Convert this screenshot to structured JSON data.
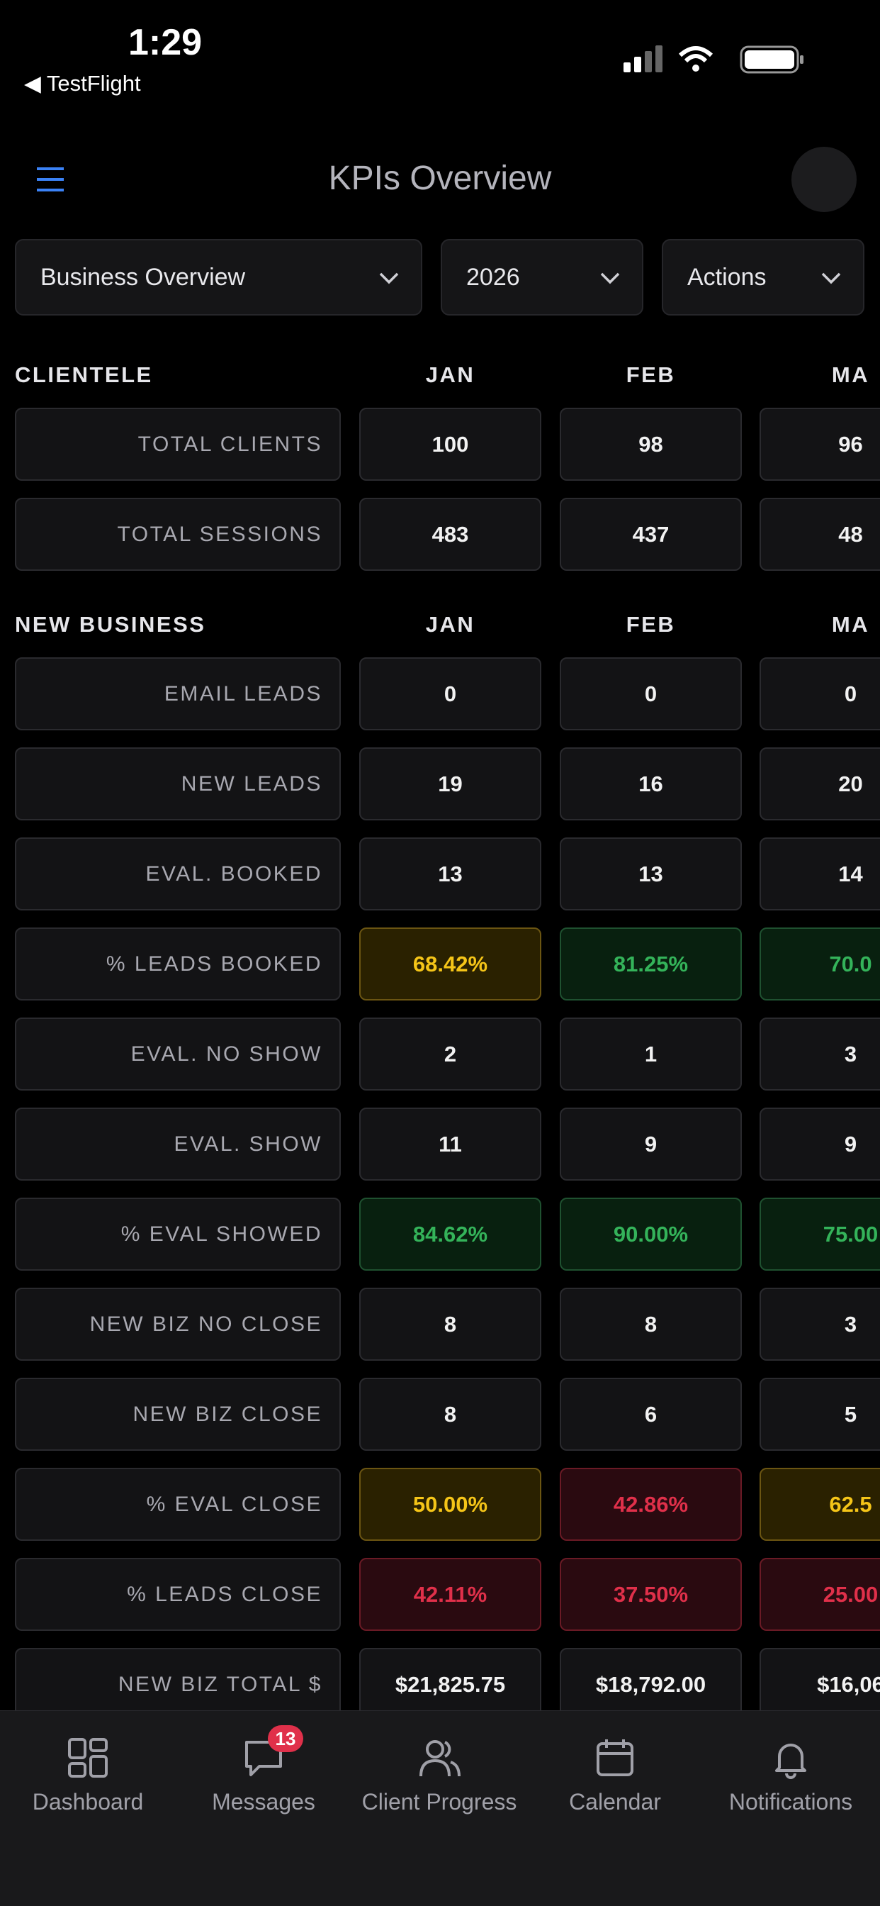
{
  "status_bar": {
    "time": "1:29",
    "back": "◀ TestFlight"
  },
  "header": {
    "title": "KPIs Overview"
  },
  "filters": [
    "Business Overview",
    "2026",
    "Actions"
  ],
  "sections": [
    {
      "title": "CLIENTELE",
      "months": [
        "JAN",
        "FEB",
        "MA"
      ],
      "rows": [
        {
          "label": "TOTAL CLIENTS",
          "cells": [
            {
              "text": "100"
            },
            {
              "text": "98"
            },
            {
              "text": "96"
            }
          ]
        },
        {
          "label": "TOTAL SESSIONS",
          "cells": [
            {
              "text": "483"
            },
            {
              "text": "437"
            },
            {
              "text": "48"
            }
          ]
        }
      ]
    },
    {
      "title": "NEW BUSINESS",
      "months": [
        "JAN",
        "FEB",
        "MA"
      ],
      "rows": [
        {
          "label": "EMAIL LEADS",
          "cells": [
            {
              "text": "0"
            },
            {
              "text": "0"
            },
            {
              "text": "0"
            }
          ]
        },
        {
          "label": "NEW LEADS",
          "cells": [
            {
              "text": "19"
            },
            {
              "text": "16"
            },
            {
              "text": "20"
            }
          ]
        },
        {
          "label": "EVAL. BOOKED",
          "cells": [
            {
              "text": "13"
            },
            {
              "text": "13"
            },
            {
              "text": "14"
            }
          ]
        },
        {
          "label": "% LEADS BOOKED",
          "cells": [
            {
              "text": "68.42%",
              "tone": "warning"
            },
            {
              "text": "81.25%",
              "tone": "good"
            },
            {
              "text": "70.0",
              "tone": "good"
            }
          ]
        },
        {
          "label": "EVAL. NO SHOW",
          "cells": [
            {
              "text": "2"
            },
            {
              "text": "1"
            },
            {
              "text": "3"
            }
          ]
        },
        {
          "label": "EVAL. SHOW",
          "cells": [
            {
              "text": "11"
            },
            {
              "text": "9"
            },
            {
              "text": "9"
            }
          ]
        },
        {
          "label": "% EVAL SHOWED",
          "cells": [
            {
              "text": "84.62%",
              "tone": "good"
            },
            {
              "text": "90.00%",
              "tone": "good"
            },
            {
              "text": "75.00",
              "tone": "good"
            }
          ]
        },
        {
          "label": "NEW BIZ NO CLOSE",
          "cells": [
            {
              "text": "8"
            },
            {
              "text": "8"
            },
            {
              "text": "3"
            }
          ]
        },
        {
          "label": "NEW BIZ CLOSE",
          "cells": [
            {
              "text": "8"
            },
            {
              "text": "6"
            },
            {
              "text": "5"
            }
          ]
        },
        {
          "label": "% EVAL CLOSE",
          "cells": [
            {
              "text": "50.00%",
              "tone": "warning"
            },
            {
              "text": "42.86%",
              "tone": "bad"
            },
            {
              "text": "62.5",
              "tone": "warning"
            }
          ]
        },
        {
          "label": "% LEADS CLOSE",
          "cells": [
            {
              "text": "42.11%",
              "tone": "bad"
            },
            {
              "text": "37.50%",
              "tone": "bad"
            },
            {
              "text": "25.00",
              "tone": "bad"
            }
          ]
        },
        {
          "label": "NEW BIZ TOTAL $",
          "cells": [
            {
              "text": "$21,825.75"
            },
            {
              "text": "$18,792.00"
            },
            {
              "text": "$16,06"
            }
          ]
        }
      ]
    }
  ],
  "tabs": [
    {
      "label": "Dashboard"
    },
    {
      "label": "Messages",
      "badge": "13"
    },
    {
      "label": "Client Progress"
    },
    {
      "label": "Calendar"
    },
    {
      "label": "Notifications"
    }
  ]
}
